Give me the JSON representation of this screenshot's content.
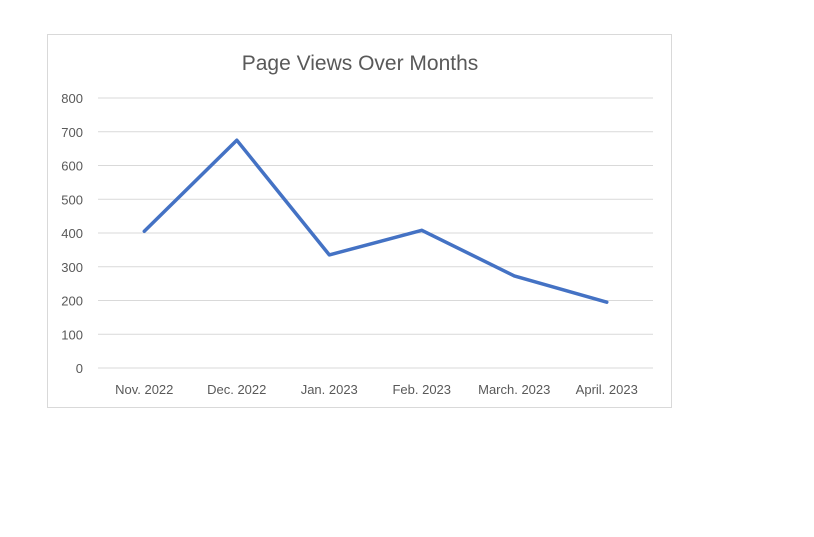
{
  "chart_data": {
    "type": "line",
    "title": "Page Views Over Months",
    "xlabel": "",
    "ylabel": "",
    "categories": [
      "Nov. 2022",
      "Dec. 2022",
      "Jan. 2023",
      "Feb. 2023",
      "March. 2023",
      "April. 2023"
    ],
    "series": [
      {
        "values": [
          405,
          675,
          335,
          408,
          273,
          195
        ],
        "color": "#4472c4"
      }
    ],
    "ylim": [
      0,
      800
    ],
    "yticks": [
      0,
      100,
      200,
      300,
      400,
      500,
      600,
      700,
      800
    ],
    "grid": true,
    "legend": "none"
  }
}
